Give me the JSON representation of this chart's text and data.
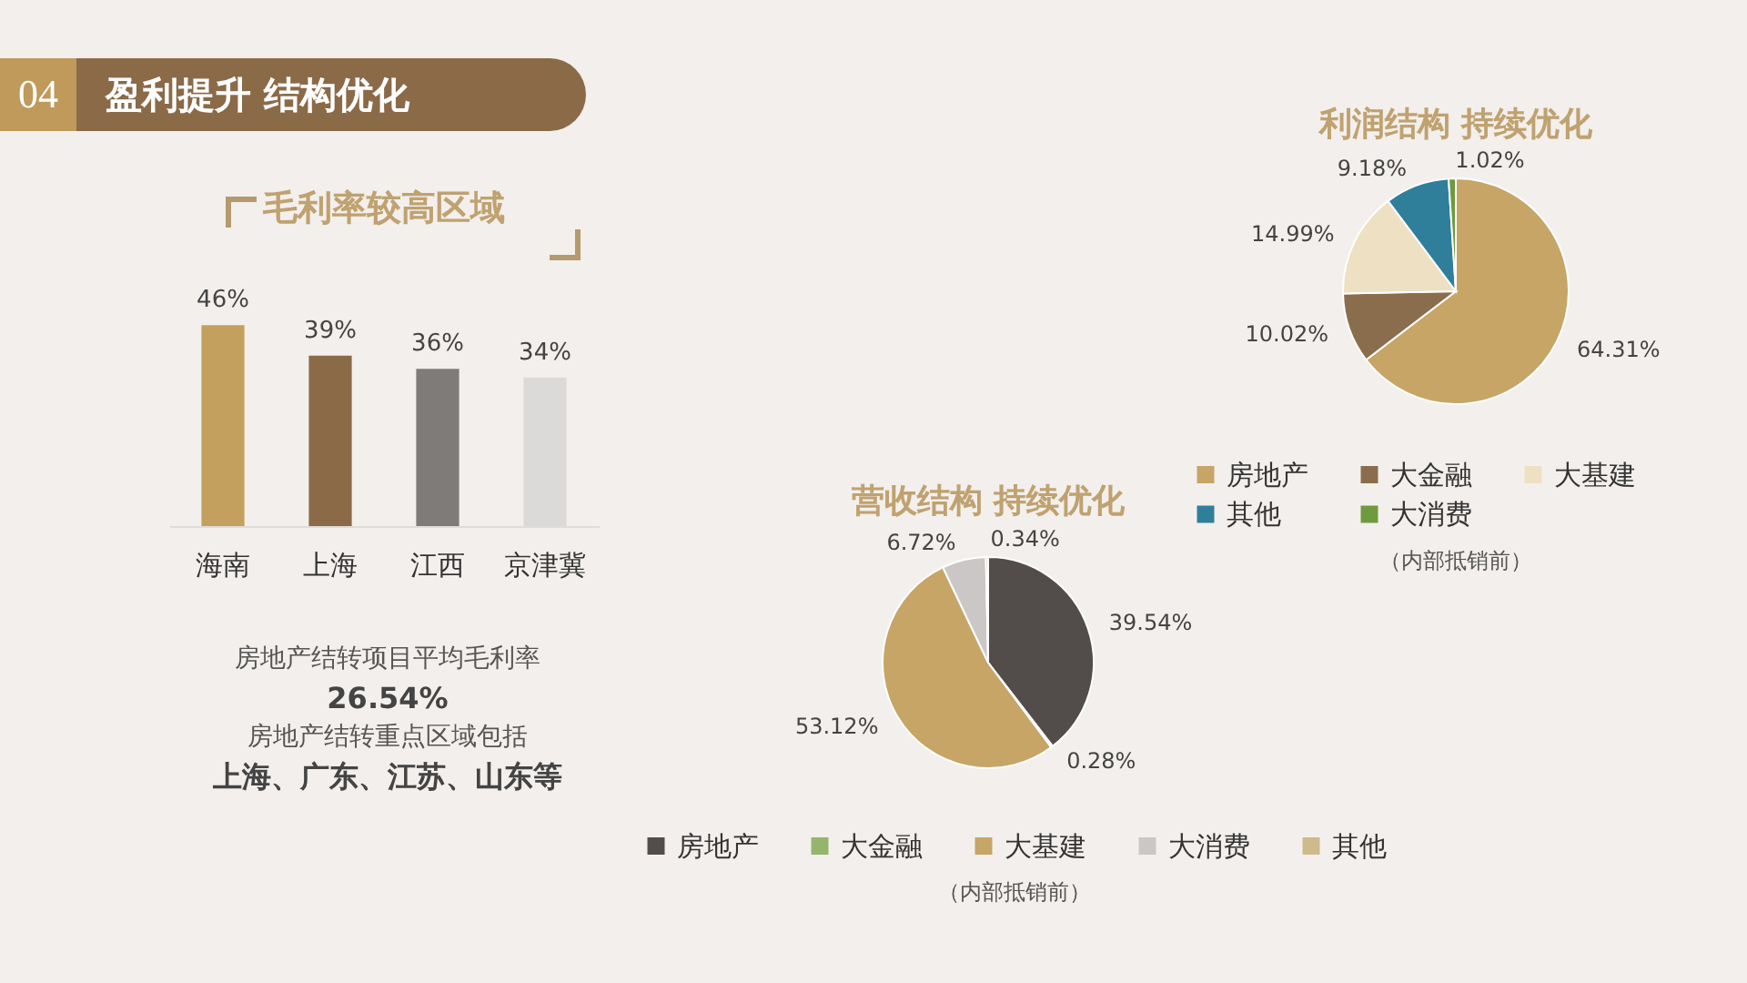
{
  "chart_data": [
    {
      "type": "bar",
      "title": "毛利率较高区域",
      "categories": [
        "海南",
        "上海",
        "江西",
        "京津冀"
      ],
      "values": [
        46,
        39,
        36,
        34
      ],
      "colors": [
        "#c4a05e",
        "#8b6a48",
        "#7f7b78",
        "#dcdad8"
      ],
      "value_labels": [
        "46%",
        "39%",
        "36%",
        "34%"
      ],
      "annotations": [
        "04",
        "盈利提升 结构优化",
        "房地产结转项目平均毛利率",
        "26.54%",
        "房地产结转重点区域包括",
        "上海、广东、江苏、山东等"
      ]
    },
    {
      "type": "pie",
      "title": "利润结构 持续优化",
      "categories": [
        "房地产",
        "大金融",
        "大基建",
        "其他",
        "大消费"
      ],
      "values": [
        64.31,
        10.02,
        14.99,
        9.18,
        1.02
      ],
      "colors": [
        "#c6a567",
        "#8a6d4c",
        "#eee0c2",
        "#2f7f9b",
        "#6f9a3d"
      ],
      "value_labels": [
        "64.31%",
        "10.02%",
        "14.99%",
        "9.18%",
        "1.02%"
      ],
      "legend": "bottom",
      "annotations": [
        "（内部抵销前）"
      ]
    },
    {
      "type": "pie",
      "title": "营收结构 持续优化",
      "categories": [
        "房地产",
        "大金融",
        "大基建",
        "大消费",
        "其他"
      ],
      "values": [
        39.54,
        0.28,
        53.12,
        6.72,
        0.34
      ],
      "colors": [
        "#524d4b",
        "#95b56c",
        "#c6a567",
        "#cbc7c7",
        "#cdbb8e"
      ],
      "value_labels": [
        "39.54%",
        "0.28%",
        "53.12%",
        "6.72%",
        "0.34%"
      ],
      "legend": "bottom",
      "annotations": [
        "（内部抵销前）"
      ]
    }
  ]
}
